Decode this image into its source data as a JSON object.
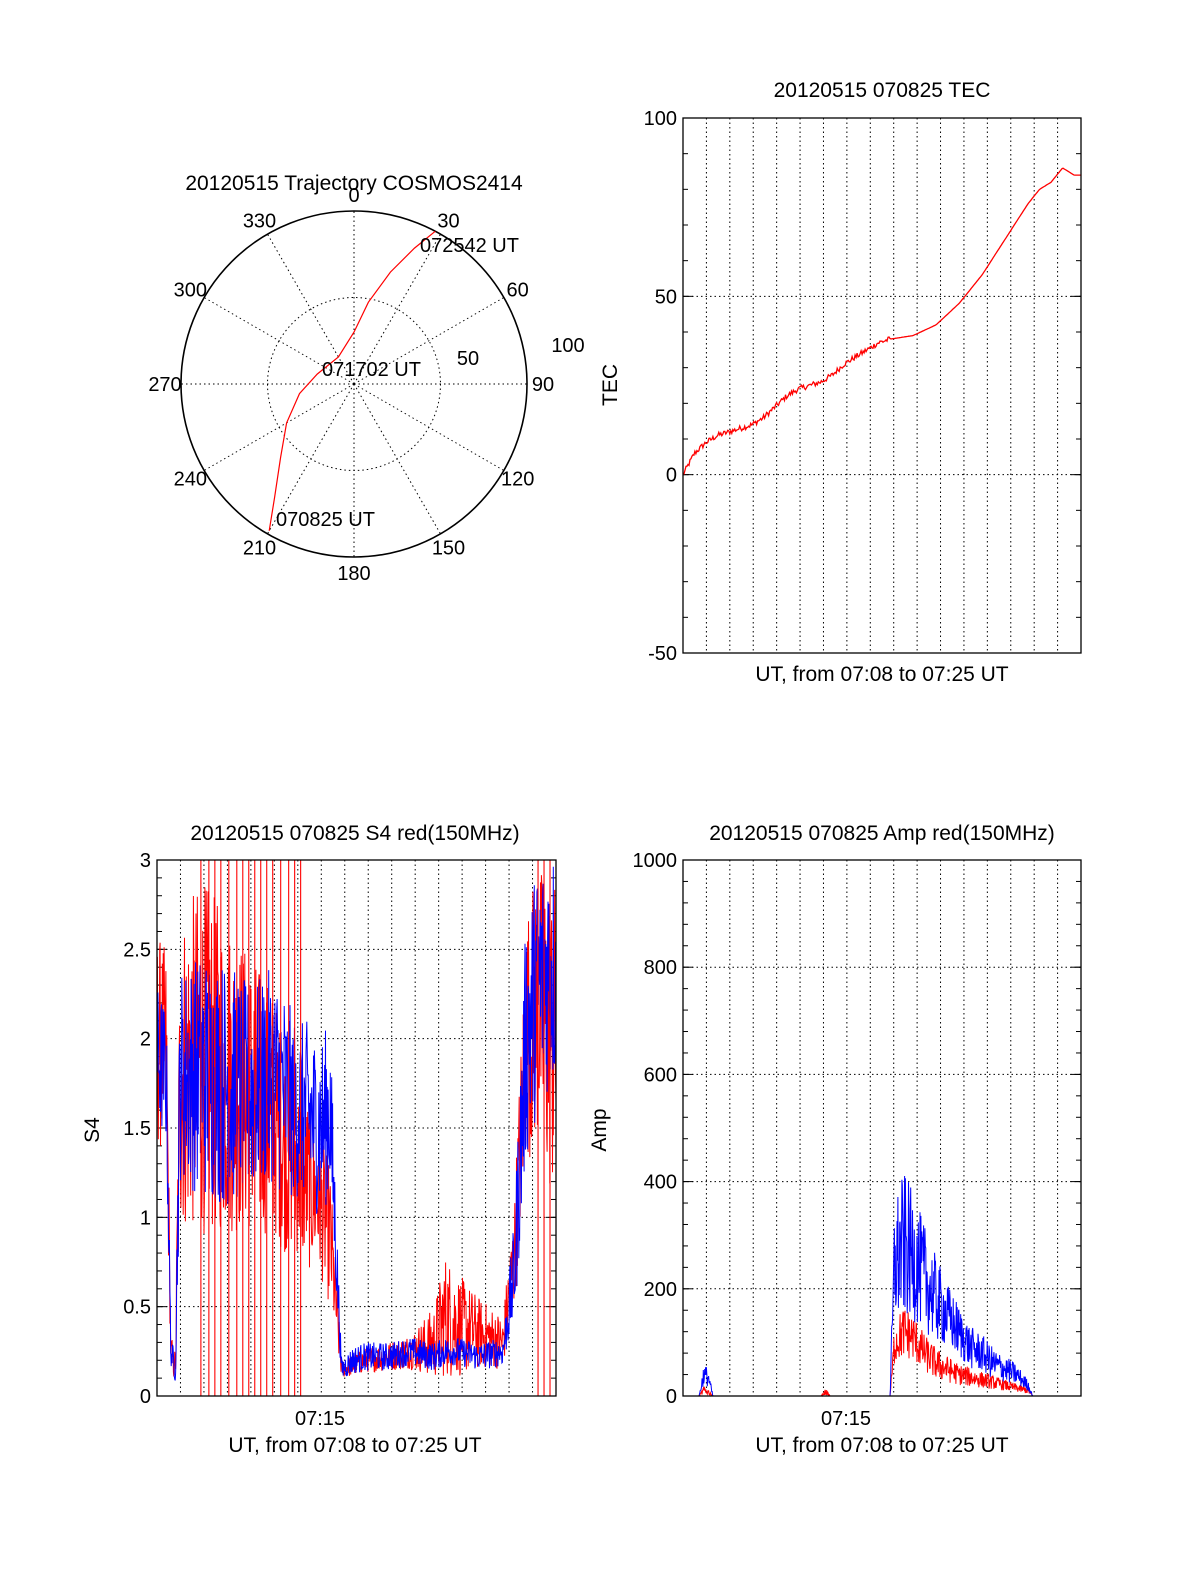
{
  "chart_data": [
    {
      "id": "polar",
      "type": "scatter",
      "title": "20120515 Trajectory COSMOS2414",
      "azimuth_labels": [
        "0",
        "30",
        "60",
        "90",
        "120",
        "150",
        "180",
        "210",
        "240",
        "270",
        "300",
        "330"
      ],
      "radial_labels": [
        "50",
        "100"
      ],
      "radial_max": 100,
      "annotations": {
        "start": "070825 UT",
        "middle": "071702 UT",
        "end": "072542 UT"
      },
      "track": {
        "color": "#ff0000",
        "points_az_r": [
          [
            210,
            98
          ],
          [
            215,
            80
          ],
          [
            225,
            60
          ],
          [
            240,
            45
          ],
          [
            260,
            32
          ],
          [
            285,
            22
          ],
          [
            330,
            18
          ],
          [
            360,
            30
          ],
          [
            10,
            48
          ],
          [
            18,
            68
          ],
          [
            24,
            86
          ],
          [
            28,
            100
          ]
        ]
      }
    },
    {
      "id": "tec",
      "type": "line",
      "title": "20120515 070825 TEC",
      "xlabel": "UT, from 07:08 to 07:25 UT",
      "ylabel": "TEC",
      "ylim": [
        -50,
        100
      ],
      "yticks": [
        "-50",
        "0",
        "50",
        "100"
      ],
      "xlim": [
        0,
        17.3
      ],
      "series": [
        {
          "color": "#ff0000",
          "x": [
            0,
            0.5,
            1.0,
            1.5,
            2.0,
            2.5,
            3.0,
            3.5,
            4.0,
            4.5,
            5.0,
            5.5,
            6.0,
            6.5,
            7.0,
            7.5,
            8.0,
            8.5,
            9.0,
            10.0,
            11.0,
            12.0,
            13.0,
            14.0,
            15.0,
            15.5,
            16.0,
            16.5,
            17.0,
            17.3
          ],
          "y": [
            0,
            6,
            9,
            11,
            12,
            13,
            14,
            16,
            19,
            22,
            24,
            25,
            26,
            28,
            31,
            33,
            35,
            37,
            38,
            39,
            42,
            48,
            56,
            66,
            76,
            80,
            82,
            86,
            84,
            84
          ]
        }
      ]
    },
    {
      "id": "s4",
      "type": "line",
      "title": "20120515 070825 S4 red(150MHz)",
      "xlabel": "UT, from 07:08 to 07:25 UT",
      "ylabel": "S4",
      "ylim": [
        0,
        3
      ],
      "yticks": [
        "0",
        "0.5",
        "1",
        "1.5",
        "2",
        "2.5",
        "3"
      ],
      "xtick_label": "07:15",
      "xlim": [
        0,
        17.3
      ],
      "series": [
        {
          "color": "#ff0000",
          "noisy": true,
          "x": [
            0,
            0.4,
            0.6,
            0.8,
            1.0,
            2.0,
            3.0,
            4.0,
            5.0,
            5.5,
            6.0,
            6.5,
            7.0,
            7.5,
            8.0,
            8.5,
            9.0,
            10.0,
            11.0,
            12.0,
            12.5,
            13.0,
            14.0,
            15.0,
            15.5,
            16.0,
            16.5,
            17.0,
            17.3
          ],
          "y": [
            2.0,
            1.9,
            0.25,
            0.15,
            1.8,
            1.9,
            1.8,
            1.7,
            1.6,
            1.4,
            1.3,
            1.2,
            1.1,
            0.9,
            0.15,
            0.17,
            0.2,
            0.22,
            0.25,
            0.3,
            0.45,
            0.4,
            0.35,
            0.3,
            0.8,
            2.0,
            2.2,
            2.0,
            2.0
          ],
          "noise_amp": [
            0.6,
            0.6,
            0.1,
            0.1,
            0.9,
            1.0,
            0.9,
            0.8,
            0.7,
            0.6,
            0.5,
            0.5,
            0.4,
            0.4,
            0.05,
            0.06,
            0.07,
            0.08,
            0.1,
            0.2,
            0.35,
            0.3,
            0.2,
            0.15,
            0.3,
            0.7,
            0.8,
            0.9,
            0.9
          ]
        },
        {
          "color": "#0000ff",
          "noisy": true,
          "x": [
            0,
            0.4,
            0.6,
            0.8,
            1.0,
            2.0,
            3.0,
            4.0,
            5.0,
            5.5,
            6.0,
            6.5,
            7.0,
            7.5,
            8.0,
            8.5,
            9.0,
            10.0,
            11.0,
            12.0,
            12.5,
            13.0,
            14.0,
            15.0,
            15.5,
            16.0,
            16.5,
            17.0,
            17.3
          ],
          "y": [
            1.9,
            1.8,
            0.25,
            0.15,
            1.8,
            1.8,
            1.75,
            1.7,
            1.8,
            1.7,
            1.6,
            1.6,
            1.5,
            1.6,
            0.15,
            0.2,
            0.22,
            0.22,
            0.25,
            0.22,
            0.25,
            0.25,
            0.22,
            0.25,
            0.7,
            2.0,
            2.3,
            2.4,
            2.4
          ],
          "noise_amp": [
            0.4,
            0.4,
            0.08,
            0.08,
            0.6,
            0.7,
            0.7,
            0.6,
            0.6,
            0.6,
            0.5,
            0.5,
            0.5,
            0.5,
            0.06,
            0.08,
            0.08,
            0.08,
            0.08,
            0.08,
            0.08,
            0.08,
            0.08,
            0.08,
            0.3,
            0.7,
            0.7,
            0.7,
            0.7
          ]
        }
      ]
    },
    {
      "id": "amp",
      "type": "line",
      "title": "20120515 070825 Amp red(150MHz)",
      "xlabel": "UT, from 07:08 to 07:25 UT",
      "ylabel": "Amp",
      "ylim": [
        0,
        1000
      ],
      "yticks": [
        "0",
        "200",
        "400",
        "600",
        "800",
        "1000"
      ],
      "xtick_label": "07:15",
      "xlim": [
        0,
        17.3
      ],
      "series": [
        {
          "color": "#ff0000",
          "noisy": true,
          "x": [
            0,
            0.7,
            0.9,
            1.1,
            1.3,
            6.0,
            6.2,
            6.4,
            8.8,
            9.0,
            9.2,
            9.6,
            10.0,
            10.5,
            11.0,
            11.5,
            12.0,
            12.5,
            13.0,
            14.0,
            15.0,
            15.2,
            17.3
          ],
          "y": [
            0,
            0,
            10,
            8,
            0,
            0,
            8,
            0,
            0,
            0,
            100,
            120,
            110,
            80,
            60,
            50,
            40,
            35,
            30,
            20,
            10,
            0,
            0
          ],
          "noise_amp": [
            0,
            0,
            8,
            6,
            0,
            0,
            6,
            0,
            0,
            0,
            40,
            50,
            45,
            35,
            30,
            25,
            20,
            18,
            15,
            10,
            6,
            0,
            0
          ]
        },
        {
          "color": "#0000ff",
          "noisy": true,
          "x": [
            0,
            0.7,
            0.9,
            1.1,
            1.3,
            8.8,
            9.0,
            9.2,
            9.6,
            10.0,
            10.5,
            11.0,
            11.5,
            12.0,
            12.5,
            13.0,
            13.5,
            14.0,
            14.5,
            15.0,
            15.2,
            17.3
          ],
          "y": [
            0,
            0,
            40,
            35,
            0,
            0,
            0,
            250,
            280,
            260,
            220,
            180,
            150,
            120,
            90,
            80,
            60,
            50,
            40,
            20,
            0,
            0
          ],
          "noise_amp": [
            0,
            0,
            20,
            18,
            0,
            0,
            0,
            120,
            140,
            120,
            100,
            80,
            60,
            50,
            40,
            35,
            30,
            25,
            20,
            10,
            0,
            0
          ]
        }
      ]
    }
  ]
}
